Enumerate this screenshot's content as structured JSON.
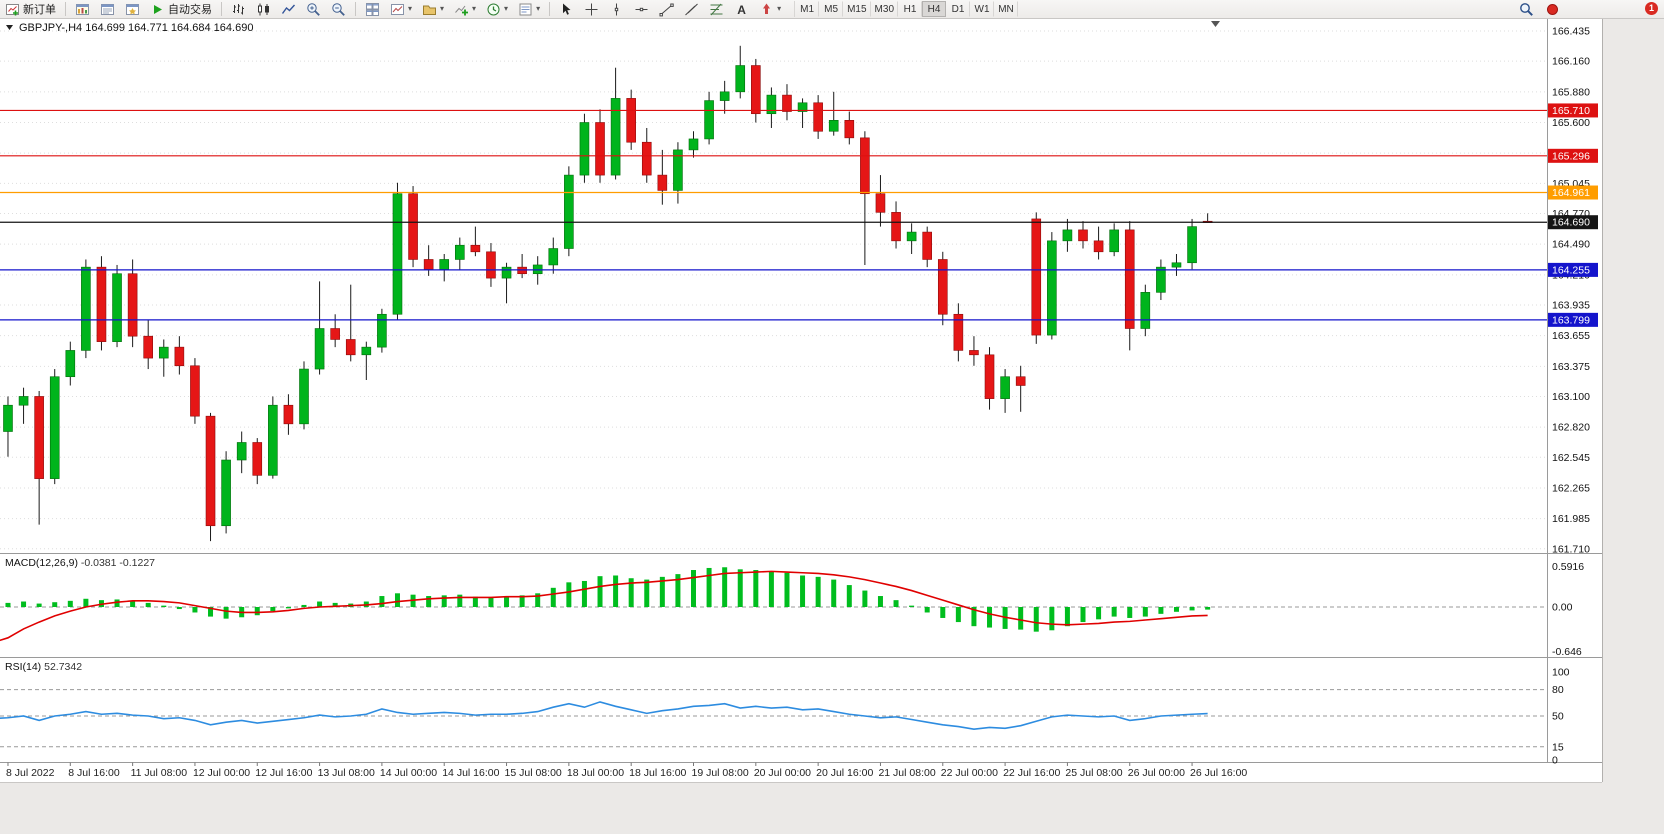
{
  "toolbar": {
    "new_order_label": "新订单",
    "auto_trading_label": "自动交易",
    "timeframes": [
      "M1",
      "M5",
      "M15",
      "M30",
      "H1",
      "H4",
      "D1",
      "W1",
      "MN"
    ],
    "active_timeframe": "H4",
    "notification_badge": "1"
  },
  "chart": {
    "title": "GBPJPY-,H4 164.699 164.771 164.684 164.690"
  },
  "chart_data": {
    "type": "candlestick",
    "symbol": "GBPJPY-",
    "period": "H4",
    "ohlc_display": {
      "open": "164.699",
      "high": "164.771",
      "low": "164.684",
      "close": "164.690"
    },
    "price_axis_ticks": [
      "166.435",
      "166.160",
      "165.880",
      "165.600",
      "165.320",
      "165.045",
      "164.770",
      "164.490",
      "164.210",
      "163.935",
      "163.655",
      "163.375",
      "163.100",
      "162.820",
      "162.545",
      "162.265",
      "161.985",
      "161.710"
    ],
    "horizontal_lines": [
      {
        "price": "165.710",
        "color": "#dd1111"
      },
      {
        "price": "165.296",
        "color": "#dd1111"
      },
      {
        "price": "164.961",
        "color": "#ff9d00"
      },
      {
        "price": "164.690",
        "color": "#151515"
      },
      {
        "price": "164.255",
        "color": "#1414cc"
      },
      {
        "price": "163.799",
        "color": "#1414cc"
      }
    ],
    "time_labels": [
      "8 Jul 2022",
      "8 Jul 16:00",
      "11 Jul 08:00",
      "12 Jul 00:00",
      "12 Jul 16:00",
      "13 Jul 08:00",
      "14 Jul 00:00",
      "14 Jul 16:00",
      "15 Jul 08:00",
      "18 Jul 00:00",
      "18 Jul 16:00",
      "19 Jul 08:00",
      "20 Jul 00:00",
      "20 Jul 16:00",
      "21 Jul 08:00",
      "22 Jul 00:00",
      "22 Jul 16:00",
      "25 Jul 08:00",
      "26 Jul 00:00",
      "26 Jul 16:00"
    ],
    "candles": [
      [
        163.42,
        163.45,
        162.7,
        162.78
      ],
      [
        162.78,
        163.1,
        162.55,
        163.02
      ],
      [
        163.02,
        163.18,
        162.85,
        163.1
      ],
      [
        163.1,
        163.15,
        161.93,
        162.35
      ],
      [
        162.35,
        163.35,
        162.3,
        163.28
      ],
      [
        163.28,
        163.6,
        163.2,
        163.52
      ],
      [
        163.52,
        164.35,
        163.45,
        164.28
      ],
      [
        164.28,
        164.38,
        163.52,
        163.6
      ],
      [
        163.6,
        164.3,
        163.55,
        164.22
      ],
      [
        164.22,
        164.35,
        163.55,
        163.65
      ],
      [
        163.65,
        163.8,
        163.35,
        163.45
      ],
      [
        163.45,
        163.62,
        163.28,
        163.55
      ],
      [
        163.55,
        163.65,
        163.3,
        163.38
      ],
      [
        163.38,
        163.45,
        162.85,
        162.92
      ],
      [
        162.92,
        162.95,
        161.78,
        161.92
      ],
      [
        161.92,
        162.6,
        161.85,
        162.52
      ],
      [
        162.52,
        162.78,
        162.4,
        162.68
      ],
      [
        162.68,
        162.72,
        162.3,
        162.38
      ],
      [
        162.38,
        163.1,
        162.35,
        163.02
      ],
      [
        163.02,
        163.12,
        162.75,
        162.85
      ],
      [
        162.85,
        163.42,
        162.8,
        163.35
      ],
      [
        163.35,
        164.15,
        163.3,
        163.72
      ],
      [
        163.72,
        163.85,
        163.55,
        163.62
      ],
      [
        163.62,
        164.12,
        163.42,
        163.48
      ],
      [
        163.48,
        163.6,
        163.25,
        163.55
      ],
      [
        163.55,
        163.9,
        163.5,
        163.85
      ],
      [
        163.85,
        165.05,
        163.8,
        164.95
      ],
      [
        164.95,
        165.02,
        164.28,
        164.35
      ],
      [
        164.35,
        164.48,
        164.2,
        164.26
      ],
      [
        164.26,
        164.4,
        164.15,
        164.35
      ],
      [
        164.35,
        164.55,
        164.25,
        164.48
      ],
      [
        164.48,
        164.65,
        164.38,
        164.42
      ],
      [
        164.42,
        164.5,
        164.1,
        164.18
      ],
      [
        164.18,
        164.32,
        163.95,
        164.28
      ],
      [
        164.28,
        164.4,
        164.18,
        164.22
      ],
      [
        164.22,
        164.38,
        164.12,
        164.3
      ],
      [
        164.3,
        164.55,
        164.22,
        164.45
      ],
      [
        164.45,
        165.2,
        164.38,
        165.12
      ],
      [
        165.12,
        165.68,
        165.05,
        165.6
      ],
      [
        165.6,
        165.72,
        165.05,
        165.12
      ],
      [
        165.12,
        166.1,
        165.08,
        165.82
      ],
      [
        165.82,
        165.9,
        165.35,
        165.42
      ],
      [
        165.42,
        165.55,
        165.05,
        165.12
      ],
      [
        165.12,
        165.35,
        164.85,
        164.98
      ],
      [
        164.98,
        165.42,
        164.86,
        165.35
      ],
      [
        165.35,
        165.52,
        165.28,
        165.45
      ],
      [
        165.45,
        165.88,
        165.4,
        165.8
      ],
      [
        165.8,
        165.98,
        165.68,
        165.88
      ],
      [
        165.88,
        166.3,
        165.82,
        166.12
      ],
      [
        166.12,
        166.18,
        165.6,
        165.68
      ],
      [
        165.68,
        165.92,
        165.55,
        165.85
      ],
      [
        165.85,
        165.95,
        165.62,
        165.7
      ],
      [
        165.7,
        165.82,
        165.55,
        165.78
      ],
      [
        165.78,
        165.85,
        165.45,
        165.52
      ],
      [
        165.52,
        165.88,
        165.48,
        165.62
      ],
      [
        165.62,
        165.7,
        165.4,
        165.46
      ],
      [
        165.46,
        165.52,
        164.3,
        164.95
      ],
      [
        164.95,
        165.12,
        164.65,
        164.78
      ],
      [
        164.78,
        164.88,
        164.45,
        164.52
      ],
      [
        164.52,
        164.68,
        164.4,
        164.6
      ],
      [
        164.6,
        164.65,
        164.28,
        164.35
      ],
      [
        164.35,
        164.42,
        163.75,
        163.85
      ],
      [
        163.85,
        163.95,
        163.42,
        163.52
      ],
      [
        163.52,
        163.65,
        163.38,
        163.48
      ],
      [
        163.48,
        163.55,
        162.98,
        163.08
      ],
      [
        163.08,
        163.35,
        162.95,
        163.28
      ],
      [
        163.28,
        163.38,
        162.96,
        163.2
      ],
      [
        164.72,
        164.78,
        163.58,
        163.66
      ],
      [
        163.66,
        164.6,
        163.62,
        164.52
      ],
      [
        164.52,
        164.72,
        164.42,
        164.62
      ],
      [
        164.62,
        164.7,
        164.45,
        164.52
      ],
      [
        164.52,
        164.65,
        164.35,
        164.42
      ],
      [
        164.42,
        164.68,
        164.38,
        164.62
      ],
      [
        164.62,
        164.7,
        163.52,
        163.72
      ],
      [
        163.72,
        164.12,
        163.65,
        164.05
      ],
      [
        164.05,
        164.35,
        163.98,
        164.28
      ],
      [
        164.28,
        164.4,
        164.2,
        164.32
      ],
      [
        164.32,
        164.72,
        164.26,
        164.65
      ],
      [
        164.699,
        164.771,
        164.684,
        164.69
      ]
    ],
    "indicators": {
      "macd": {
        "label": "MACD(12,26,9)",
        "values_text": "-0.0381 -0.1227",
        "axis_labels": [
          "0.5916",
          "0.00",
          "-0.646"
        ],
        "histogram": [
          0.05,
          0.06,
          0.08,
          0.05,
          0.07,
          0.09,
          0.12,
          0.1,
          0.11,
          0.09,
          0.06,
          0.02,
          -0.03,
          -0.08,
          -0.14,
          -0.17,
          -0.15,
          -0.12,
          -0.06,
          -0.02,
          0.03,
          0.08,
          0.06,
          0.05,
          0.08,
          0.16,
          0.2,
          0.18,
          0.16,
          0.17,
          0.18,
          0.15,
          0.14,
          0.15,
          0.17,
          0.2,
          0.28,
          0.36,
          0.38,
          0.45,
          0.46,
          0.42,
          0.4,
          0.44,
          0.48,
          0.54,
          0.57,
          0.58,
          0.55,
          0.54,
          0.52,
          0.5,
          0.46,
          0.44,
          0.4,
          0.32,
          0.24,
          0.16,
          0.1,
          0.02,
          -0.08,
          -0.16,
          -0.22,
          -0.28,
          -0.3,
          -0.32,
          -0.33,
          -0.36,
          -0.34,
          -0.28,
          -0.22,
          -0.18,
          -0.14,
          -0.16,
          -0.14,
          -0.1,
          -0.07,
          -0.05,
          -0.0381
        ],
        "signal": [
          -0.52,
          -0.45,
          -0.32,
          -0.22,
          -0.13,
          -0.06,
          0.0,
          0.04,
          0.07,
          0.09,
          0.09,
          0.08,
          0.06,
          0.02,
          -0.02,
          -0.06,
          -0.08,
          -0.08,
          -0.07,
          -0.05,
          -0.02,
          0.0,
          0.01,
          0.02,
          0.03,
          0.05,
          0.08,
          0.1,
          0.12,
          0.13,
          0.14,
          0.14,
          0.14,
          0.15,
          0.15,
          0.16,
          0.19,
          0.22,
          0.26,
          0.3,
          0.33,
          0.35,
          0.36,
          0.38,
          0.4,
          0.43,
          0.46,
          0.49,
          0.5,
          0.51,
          0.52,
          0.51,
          0.5,
          0.49,
          0.47,
          0.44,
          0.4,
          0.35,
          0.3,
          0.24,
          0.17,
          0.1,
          0.03,
          -0.04,
          -0.1,
          -0.15,
          -0.19,
          -0.23,
          -0.25,
          -0.26,
          -0.25,
          -0.24,
          -0.22,
          -0.21,
          -0.19,
          -0.17,
          -0.15,
          -0.13,
          -0.1227
        ]
      },
      "rsi": {
        "label": "RSI(14)",
        "value_text": "52.7342",
        "axis_labels": [
          "100",
          "80",
          "50",
          "15",
          "0"
        ],
        "levels": [
          80,
          50,
          15
        ],
        "values": [
          47,
          48,
          50,
          45,
          50,
          52,
          55,
          52,
          53,
          51,
          50,
          47,
          48,
          45,
          40,
          43,
          45,
          42,
          44,
          46,
          48,
          51,
          49,
          50,
          52,
          58,
          54,
          52,
          53,
          54,
          53,
          51,
          52,
          52,
          53,
          55,
          60,
          64,
          60,
          66,
          61,
          57,
          53,
          56,
          58,
          61,
          62,
          64,
          59,
          61,
          59,
          60,
          57,
          58,
          55,
          52,
          50,
          48,
          49,
          46,
          43,
          40,
          38,
          35,
          37,
          36,
          39,
          44,
          49,
          51,
          50,
          49,
          50,
          45,
          47,
          50,
          51,
          52,
          52.73
        ]
      }
    }
  }
}
